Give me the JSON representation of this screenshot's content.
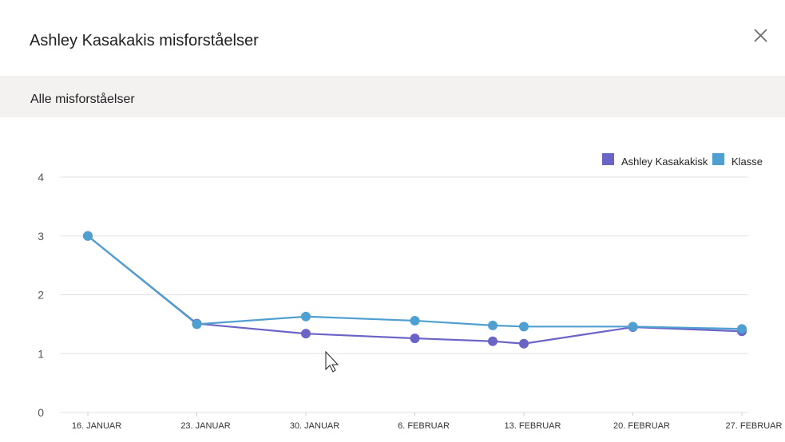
{
  "header": {
    "title": "Ashley Kasakakis misforståelser"
  },
  "section": {
    "title": "Alle misforståelser"
  },
  "chart_data": {
    "type": "line",
    "x": [
      16,
      23,
      30,
      37,
      42,
      44,
      51,
      58
    ],
    "xlim": [
      16,
      58
    ],
    "xticks": [
      {
        "value": 16,
        "label": "16. JANUAR"
      },
      {
        "value": 23,
        "label": "23. JANUAR"
      },
      {
        "value": 30,
        "label": "30. JANUAR"
      },
      {
        "value": 37,
        "label": "6. FEBRUAR"
      },
      {
        "value": 44,
        "label": "13. FEBRUAR"
      },
      {
        "value": 51,
        "label": "20. FEBRUAR"
      },
      {
        "value": 58,
        "label": "27. FEBRUAR"
      }
    ],
    "ylim": [
      0,
      4
    ],
    "yticks": [
      0,
      1,
      2,
      3,
      4
    ],
    "grid": true,
    "series": [
      {
        "name": "Ashley Kasakakisk",
        "color": "#6964c6",
        "values": [
          3,
          1.51,
          1.34,
          1.26,
          1.21,
          1.17,
          1.45,
          1.38
        ]
      },
      {
        "name": "Klasse",
        "color": "#4f9fd0",
        "values": [
          3,
          1.5,
          1.63,
          1.56,
          1.48,
          1.46,
          1.46,
          1.42
        ]
      }
    ]
  }
}
